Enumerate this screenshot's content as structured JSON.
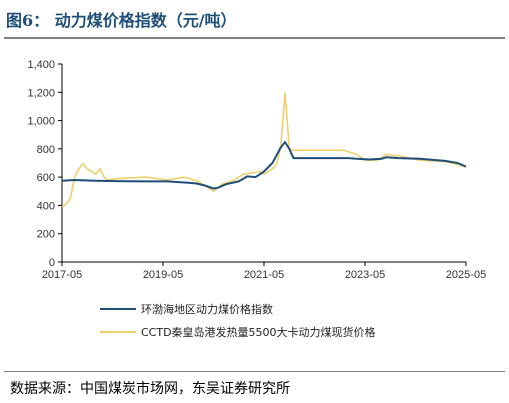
{
  "figure_title": "图6：  动力煤价格指数（元/吨）",
  "source_text": "数据来源：中国煤炭市场网，东吴证券研究所",
  "colors": {
    "series1": "#1f4e79",
    "series2": "#f0cf6e",
    "title": "#1f4e79"
  },
  "chart_data": {
    "type": "line",
    "title": "",
    "xlabel": "",
    "ylabel": "",
    "ylim": [
      0,
      1400
    ],
    "yticks": [
      "0",
      "200",
      "400",
      "600",
      "800",
      "1,000",
      "1,200",
      "1,400"
    ],
    "xlim": [
      "2017-05",
      "2025-05"
    ],
    "xticks": [
      "2017-05",
      "2019-05",
      "2021-05",
      "2023-05",
      "2025-05"
    ],
    "grid": false,
    "legend_position": "bottom",
    "series": [
      {
        "name": "环渤海地区动力煤价格指数",
        "points": [
          [
            "2017-05",
            575
          ],
          [
            "2017-08",
            580
          ],
          [
            "2018-01",
            575
          ],
          [
            "2018-06",
            572
          ],
          [
            "2019-01",
            570
          ],
          [
            "2019-06",
            570
          ],
          [
            "2019-11",
            560
          ],
          [
            "2020-01",
            555
          ],
          [
            "2020-03",
            540
          ],
          [
            "2020-05",
            520
          ],
          [
            "2020-06",
            525
          ],
          [
            "2020-08",
            550
          ],
          [
            "2020-11",
            570
          ],
          [
            "2021-01",
            605
          ],
          [
            "2021-03",
            600
          ],
          [
            "2021-05",
            640
          ],
          [
            "2021-07",
            700
          ],
          [
            "2021-08",
            755
          ],
          [
            "2021-09",
            810
          ],
          [
            "2021-10",
            848
          ],
          [
            "2021-11",
            800
          ],
          [
            "2021-12",
            735
          ],
          [
            "2022-06",
            735
          ],
          [
            "2022-12",
            735
          ],
          [
            "2023-01",
            735
          ],
          [
            "2023-03",
            730
          ],
          [
            "2023-06",
            725
          ],
          [
            "2023-09",
            730
          ],
          [
            "2023-10",
            740
          ],
          [
            "2024-01",
            735
          ],
          [
            "2024-06",
            730
          ],
          [
            "2024-12",
            715
          ],
          [
            "2025-03",
            700
          ],
          [
            "2025-05",
            675
          ]
        ]
      },
      {
        "name": "CCTD秦皇岛港发热量5500大卡动力煤现货价格",
        "points": [
          [
            "2017-05",
            390
          ],
          [
            "2017-06",
            410
          ],
          [
            "2017-07",
            450
          ],
          [
            "2017-08",
            600
          ],
          [
            "2017-09",
            660
          ],
          [
            "2017-10",
            695
          ],
          [
            "2017-11",
            660
          ],
          [
            "2017-12",
            640
          ],
          [
            "2018-01",
            620
          ],
          [
            "2018-02",
            660
          ],
          [
            "2018-03",
            600
          ],
          [
            "2018-04",
            580
          ],
          [
            "2018-06",
            590
          ],
          [
            "2019-01",
            600
          ],
          [
            "2019-06",
            580
          ],
          [
            "2019-10",
            600
          ],
          [
            "2020-01",
            575
          ],
          [
            "2020-03",
            540
          ],
          [
            "2020-05",
            500
          ],
          [
            "2020-07",
            550
          ],
          [
            "2020-10",
            580
          ],
          [
            "2020-12",
            620
          ],
          [
            "2021-02",
            630
          ],
          [
            "2021-04",
            640
          ],
          [
            "2021-05",
            620
          ],
          [
            "2021-07",
            660
          ],
          [
            "2021-08",
            690
          ],
          [
            "2021-09",
            820
          ],
          [
            "2021-10",
            1195
          ],
          [
            "2021-11",
            800
          ],
          [
            "2021-12",
            790
          ],
          [
            "2022-06",
            790
          ],
          [
            "2022-12",
            790
          ],
          [
            "2023-03",
            760
          ],
          [
            "2023-05",
            720
          ],
          [
            "2023-08",
            720
          ],
          [
            "2023-10",
            760
          ],
          [
            "2024-01",
            750
          ],
          [
            "2024-06",
            720
          ],
          [
            "2024-12",
            710
          ],
          [
            "2025-03",
            690
          ],
          [
            "2025-05",
            670
          ]
        ]
      }
    ]
  }
}
